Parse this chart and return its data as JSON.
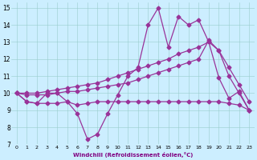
{
  "xlabel": "Windchill (Refroidissement éolien,°C)",
  "bg_color": "#cceeff",
  "line_color": "#993399",
  "xlim": [
    -0.5,
    23.5
  ],
  "ylim": [
    7,
    15.3
  ],
  "xticks": [
    0,
    1,
    2,
    3,
    4,
    5,
    6,
    7,
    8,
    9,
    10,
    11,
    12,
    13,
    14,
    15,
    16,
    17,
    18,
    19,
    20,
    21,
    22,
    23
  ],
  "yticks": [
    7,
    8,
    9,
    10,
    11,
    12,
    13,
    14,
    15
  ],
  "x": [
    0,
    1,
    2,
    3,
    4,
    5,
    6,
    7,
    8,
    9,
    10,
    11,
    12,
    13,
    14,
    15,
    16,
    17,
    18,
    19,
    20,
    21,
    22,
    23
  ],
  "line1": [
    10.0,
    9.5,
    9.4,
    10.0,
    10.0,
    9.5,
    8.8,
    7.3,
    7.6,
    8.8,
    9.9,
    11.0,
    11.5,
    14.0,
    15.0,
    12.7,
    14.5,
    14.0,
    14.3,
    13.0,
    10.9,
    9.7,
    10.1,
    9.0
  ],
  "line2": [
    10.0,
    9.5,
    9.4,
    9.4,
    9.4,
    9.5,
    9.3,
    9.4,
    9.5,
    9.5,
    9.5,
    9.5,
    9.5,
    9.5,
    9.5,
    9.5,
    9.5,
    9.5,
    9.5,
    9.5,
    9.5,
    9.4,
    9.3,
    9.0
  ],
  "line3": [
    10.0,
    9.9,
    9.9,
    9.9,
    10.0,
    10.1,
    10.1,
    10.2,
    10.3,
    10.4,
    10.5,
    10.6,
    10.8,
    11.0,
    11.2,
    11.4,
    11.6,
    11.8,
    12.0,
    13.1,
    12.5,
    11.0,
    10.0,
    9.0
  ],
  "line4": [
    10.0,
    10.0,
    10.0,
    10.1,
    10.2,
    10.3,
    10.4,
    10.5,
    10.6,
    10.8,
    11.0,
    11.2,
    11.4,
    11.6,
    11.8,
    12.0,
    12.3,
    12.5,
    12.7,
    13.0,
    12.5,
    11.5,
    10.5,
    9.5
  ]
}
